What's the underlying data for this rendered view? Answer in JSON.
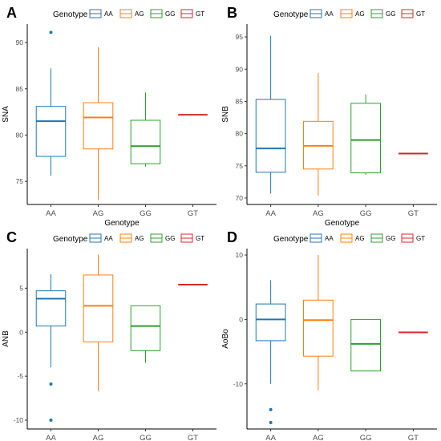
{
  "legend": {
    "title": "Genotype",
    "entries": [
      {
        "label": "AA",
        "color": "#1f77b4"
      },
      {
        "label": "AG",
        "color": "#ff7f0e"
      },
      {
        "label": "GG",
        "color": "#2ca02c"
      },
      {
        "label": "GT",
        "color": "#d62728"
      }
    ]
  },
  "chart_data": [
    {
      "panel_letter": "A",
      "type": "box",
      "xlabel": "Genotype",
      "ylabel": "SNA",
      "categories": [
        "AA",
        "AG",
        "GG",
        "GT"
      ],
      "ylim": [
        72.5,
        92
      ],
      "yticks": [
        75,
        80,
        85,
        90
      ],
      "legend_position": "top",
      "grid": false,
      "boxes": [
        {
          "category": "AA",
          "whisker_low": 75.6,
          "q1": 77.7,
          "median": 81.5,
          "q3": 83.1,
          "whisker_high": 87.2,
          "outliers": [
            91.1
          ]
        },
        {
          "category": "AG",
          "whisker_low": 73.0,
          "q1": 78.5,
          "median": 81.9,
          "q3": 83.5,
          "whisker_high": 89.5,
          "outliers": []
        },
        {
          "category": "GG",
          "whisker_low": 76.6,
          "q1": 76.9,
          "median": 78.8,
          "q3": 81.6,
          "whisker_high": 84.6,
          "outliers": []
        },
        {
          "category": "GT",
          "whisker_low": 82.2,
          "q1": 82.2,
          "median": 82.2,
          "q3": 82.2,
          "whisker_high": 82.2,
          "outliers": []
        }
      ]
    },
    {
      "panel_letter": "B",
      "type": "box",
      "xlabel": "Genotype",
      "ylabel": "SNB",
      "categories": [
        "AA",
        "AG",
        "GG",
        "GT"
      ],
      "ylim": [
        69,
        97
      ],
      "yticks": [
        70,
        75,
        80,
        85,
        90,
        95
      ],
      "legend_position": "top",
      "grid": false,
      "boxes": [
        {
          "category": "AA",
          "whisker_low": 70.7,
          "q1": 74.0,
          "median": 77.7,
          "q3": 85.3,
          "whisker_high": 95.2,
          "outliers": []
        },
        {
          "category": "AG",
          "whisker_low": 70.4,
          "q1": 74.5,
          "median": 78.1,
          "q3": 81.9,
          "whisker_high": 89.4,
          "outliers": []
        },
        {
          "category": "GG",
          "whisker_low": 73.6,
          "q1": 73.9,
          "median": 79.0,
          "q3": 84.7,
          "whisker_high": 86.1,
          "outliers": []
        },
        {
          "category": "GT",
          "whisker_low": 76.9,
          "q1": 76.9,
          "median": 76.9,
          "q3": 76.9,
          "whisker_high": 76.9,
          "outliers": []
        }
      ]
    },
    {
      "panel_letter": "C",
      "type": "box",
      "xlabel": "Genotype",
      "ylabel": "ANB",
      "categories": [
        "AA",
        "AG",
        "GG",
        "GT"
      ],
      "ylim": [
        -11,
        9.5
      ],
      "yticks": [
        -10,
        -5,
        0,
        5
      ],
      "legend_position": "top",
      "grid": false,
      "boxes": [
        {
          "category": "AA",
          "whisker_low": -4.0,
          "q1": 0.7,
          "median": 3.8,
          "q3": 4.7,
          "whisker_high": 6.6,
          "outliers": [
            -5.9,
            -10.0
          ]
        },
        {
          "category": "AG",
          "whisker_low": -6.7,
          "q1": -1.1,
          "median": 3.0,
          "q3": 6.5,
          "whisker_high": 8.8,
          "outliers": []
        },
        {
          "category": "GG",
          "whisker_low": -3.5,
          "q1": -2.1,
          "median": 0.7,
          "q3": 3.0,
          "whisker_high": 3.0,
          "outliers": []
        },
        {
          "category": "GT",
          "whisker_low": 5.4,
          "q1": 5.4,
          "median": 5.4,
          "q3": 5.4,
          "whisker_high": 5.4,
          "outliers": []
        }
      ]
    },
    {
      "panel_letter": "D",
      "type": "box",
      "xlabel": "Genotype",
      "ylabel": "AoBo",
      "categories": [
        "AA",
        "AG",
        "GG",
        "GT"
      ],
      "ylim": [
        -17,
        11
      ],
      "yticks": [
        -10,
        0,
        10
      ],
      "legend_position": "top",
      "grid": false,
      "boxes": [
        {
          "category": "AA",
          "whisker_low": -10.0,
          "q1": -3.3,
          "median": 0.0,
          "q3": 2.4,
          "whisker_high": 6.1,
          "outliers": [
            -14.0,
            -16.0
          ]
        },
        {
          "category": "AG",
          "whisker_low": -11.0,
          "q1": -5.7,
          "median": -0.1,
          "q3": 3.0,
          "whisker_high": 10.0,
          "outliers": []
        },
        {
          "category": "GG",
          "whisker_low": -8.0,
          "q1": -8.0,
          "median": -3.8,
          "q3": 0.0,
          "whisker_high": 0.0,
          "outliers": []
        },
        {
          "category": "GT",
          "whisker_low": -2.0,
          "q1": -2.0,
          "median": -2.0,
          "q3": -2.0,
          "whisker_high": -2.0,
          "outliers": []
        }
      ]
    }
  ]
}
